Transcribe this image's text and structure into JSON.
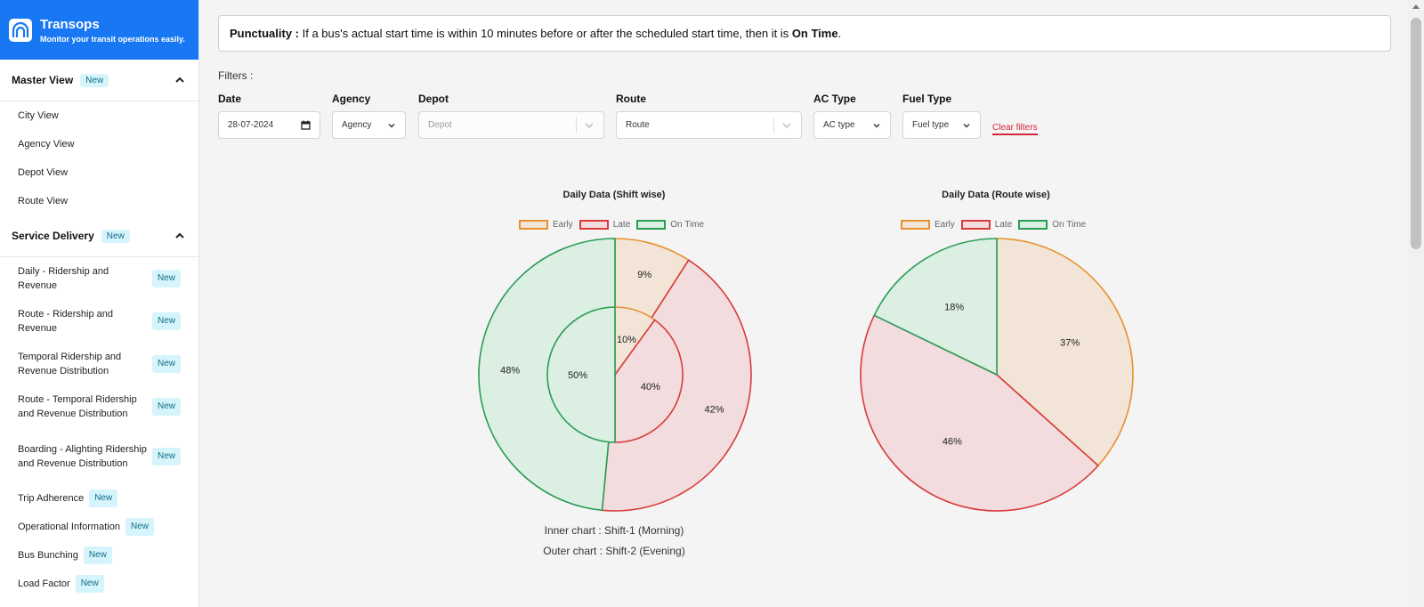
{
  "app": {
    "title": "Transops",
    "subtitle": "Monitor your transit operations easily."
  },
  "sidebar": {
    "sections": [
      {
        "title": "Master View",
        "badge": "New",
        "items": [
          {
            "label": "City View"
          },
          {
            "label": "Agency View"
          },
          {
            "label": "Depot View"
          },
          {
            "label": "Route View"
          }
        ]
      },
      {
        "title": "Service Delivery",
        "badge": "New",
        "items": [
          {
            "label": "Daily - Ridership and Revenue",
            "badge": "New"
          },
          {
            "label": "Route - Ridership and Revenue",
            "badge": "New"
          },
          {
            "label": "Temporal Ridership and Revenue Distribution",
            "badge": "New"
          },
          {
            "label": "Route - Temporal Ridership and Revenue Distribution",
            "badge": "New"
          },
          {
            "label": "Boarding - Alighting Ridership and Revenue Distribution",
            "badge": "New"
          },
          {
            "label": "Trip Adherence",
            "badge": "New"
          },
          {
            "label": "Operational Information",
            "badge": "New"
          },
          {
            "label": "Bus Bunching",
            "badge": "New"
          },
          {
            "label": "Load Factor",
            "badge": "New"
          }
        ]
      }
    ]
  },
  "info": {
    "prefix": "Punctuality :",
    "text": " If a bus's actual start time is within 10 minutes before or after the scheduled start time, then it is ",
    "emphasis": "On Time",
    "suffix": "."
  },
  "filters": {
    "label": "Filters :",
    "date": {
      "label": "Date",
      "value": "28-07-2024"
    },
    "agency": {
      "label": "Agency",
      "value": "Agency"
    },
    "depot": {
      "label": "Depot",
      "placeholder": "Depot"
    },
    "route": {
      "label": "Route",
      "placeholder": "Route"
    },
    "ac_type": {
      "label": "AC Type",
      "value": "AC type"
    },
    "fuel_type": {
      "label": "Fuel Type",
      "value": "Fuel type"
    },
    "clear_label": "Clear filters"
  },
  "colors": {
    "early": "#e8912f",
    "early_fill": "#f2e4d7",
    "late": "#d93a3a",
    "late_fill": "#f2dcdd",
    "ontime": "#2a9d55",
    "ontime_fill": "#dcefe3"
  },
  "chart_data": [
    {
      "type": "pie",
      "title": "Daily Data (Shift wise)",
      "legend": [
        "Early",
        "Late",
        "On Time"
      ],
      "legend_position": "top",
      "rings": [
        {
          "name": "Shift-1 (Morning)",
          "ring": "inner",
          "values": [
            10,
            40,
            50
          ],
          "labels": [
            "10%",
            "40%",
            "50%"
          ]
        },
        {
          "name": "Shift-2 (Evening)",
          "ring": "outer",
          "values": [
            9,
            42,
            48
          ],
          "labels": [
            "9%",
            "42%",
            "48%"
          ]
        }
      ],
      "notes": [
        "Inner chart : Shift-1 (Morning)",
        "Outer chart : Shift-2 (Evening)"
      ]
    },
    {
      "type": "pie",
      "title": "Daily Data (Route wise)",
      "legend": [
        "Early",
        "Late",
        "On Time"
      ],
      "legend_position": "top",
      "values": [
        37,
        46,
        18
      ],
      "labels": [
        "37%",
        "46%",
        "18%"
      ]
    }
  ]
}
